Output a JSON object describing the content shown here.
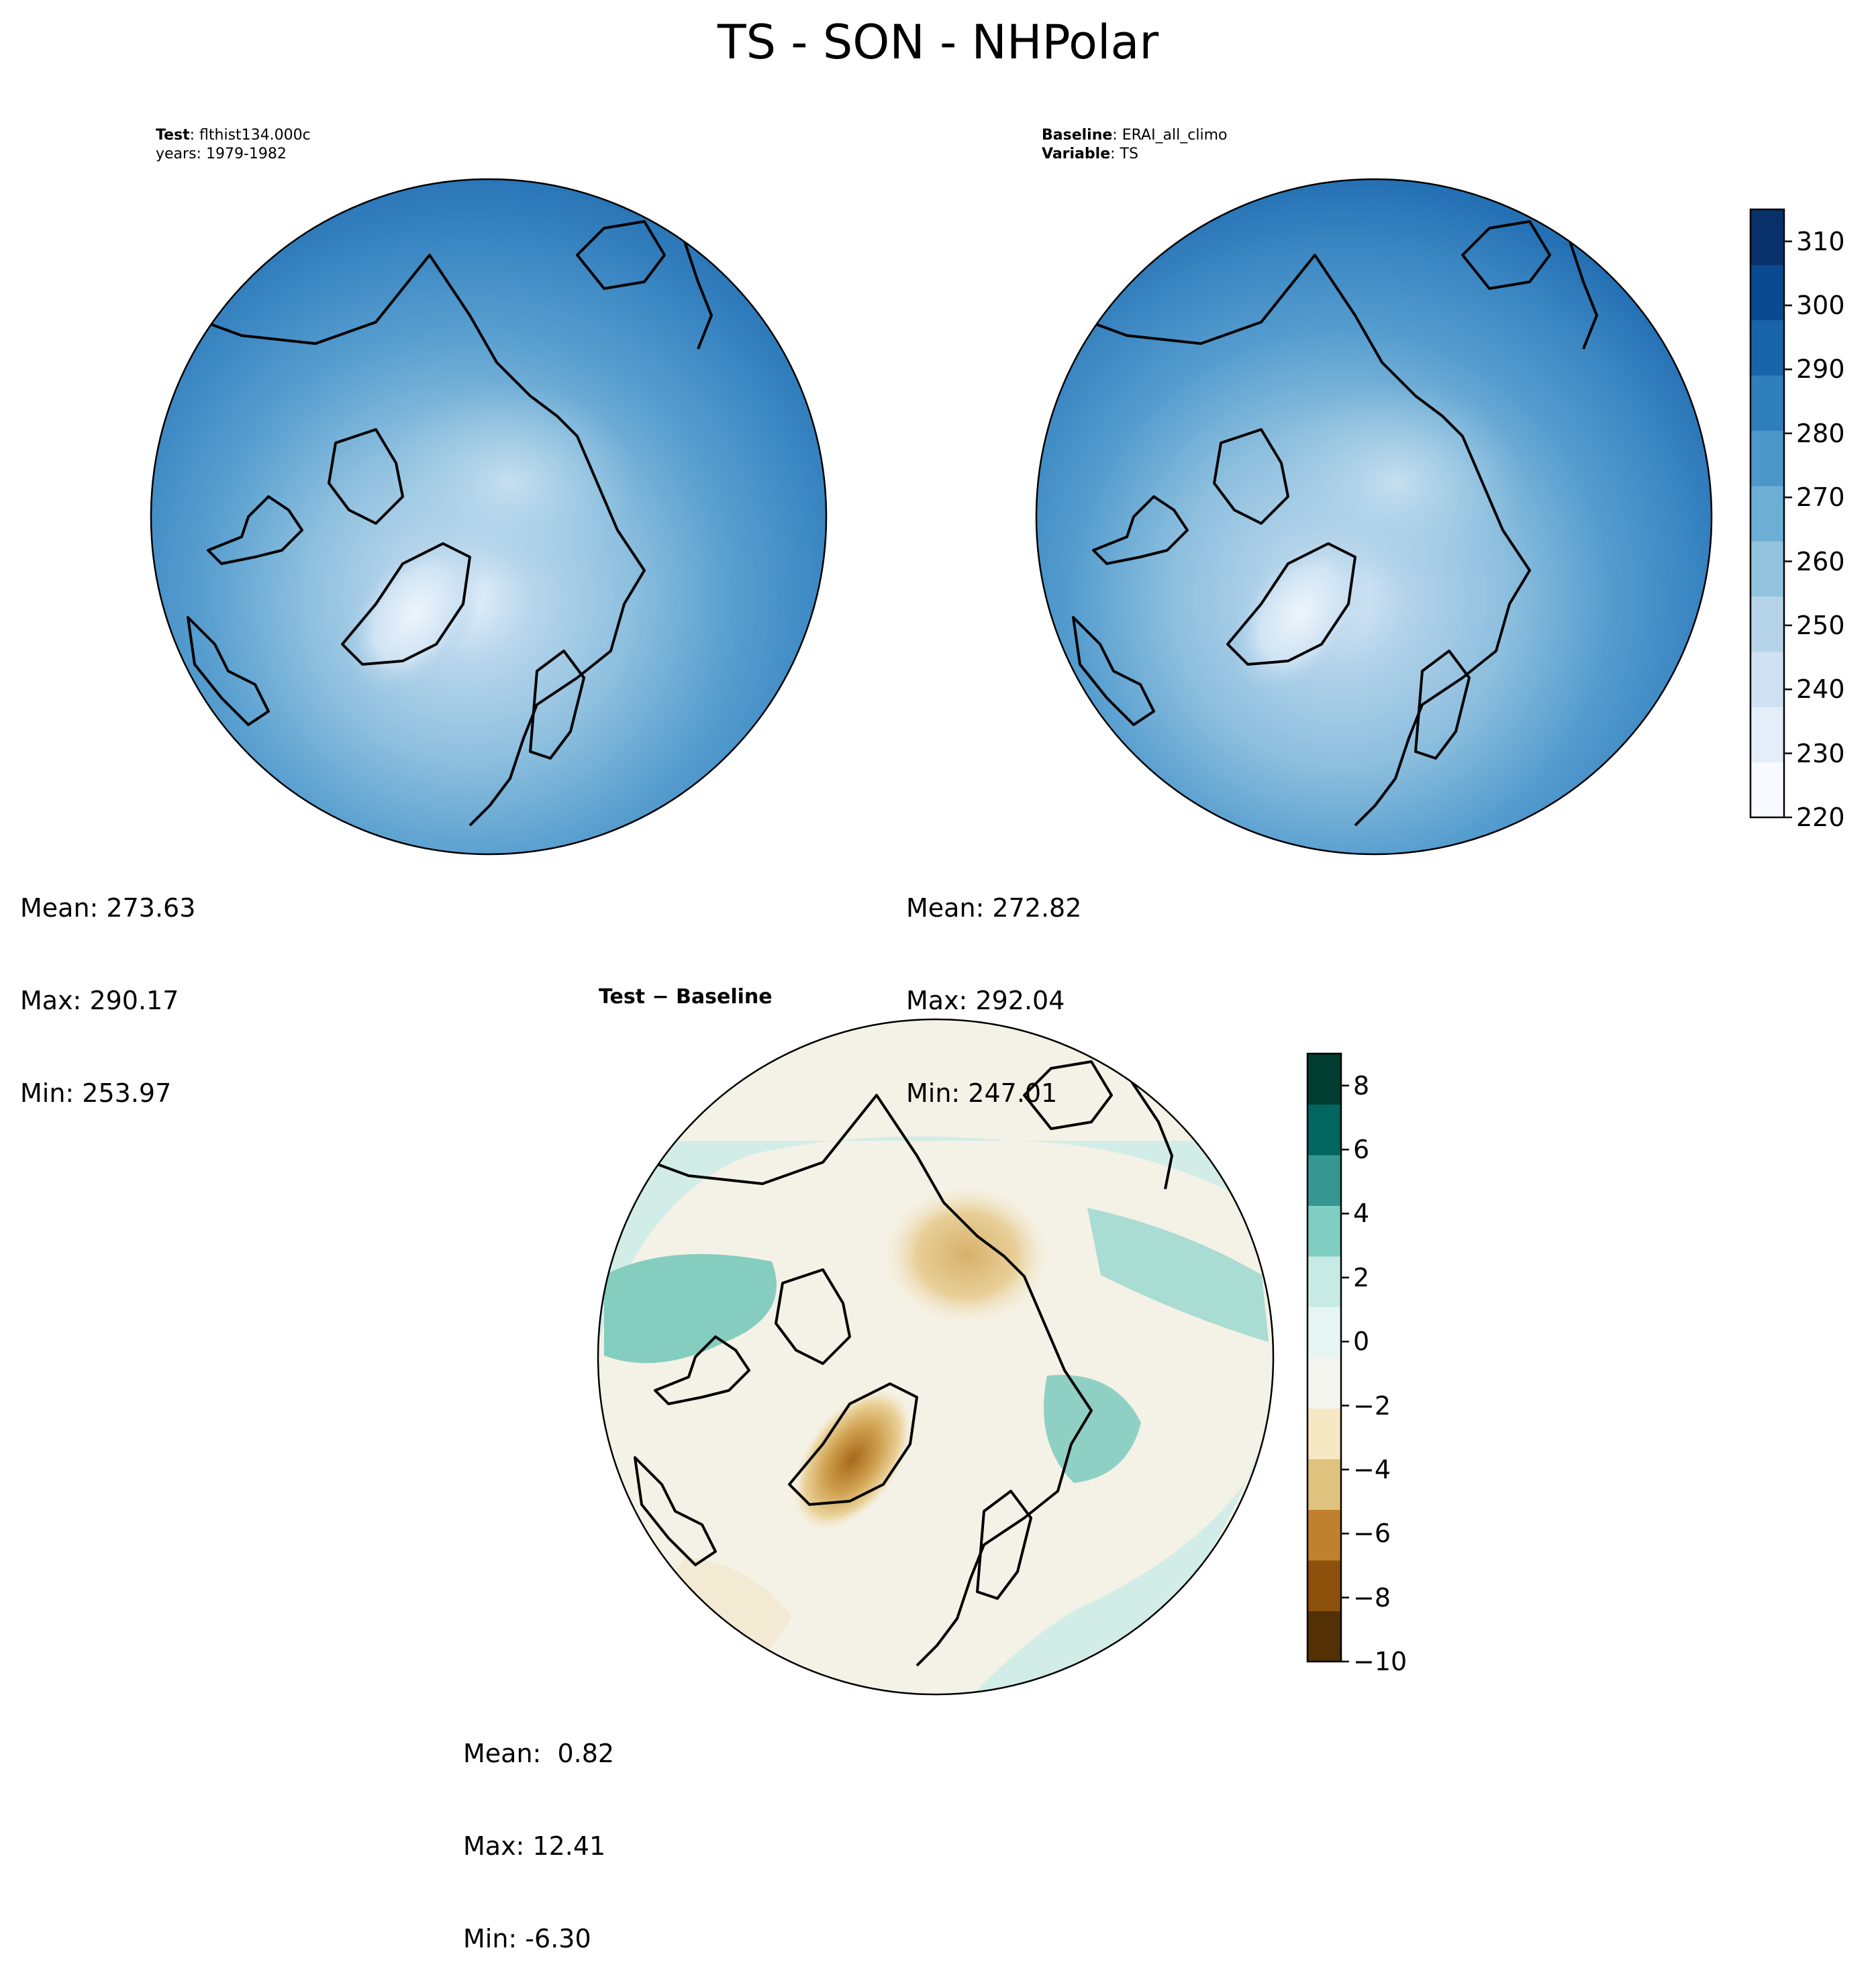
{
  "title": "TS - SON - NHPolar",
  "test_panel": {
    "case_label": "Test",
    "case_sep": ":",
    "case_name": "flthist134.000c",
    "years": "years: 1979-1982",
    "mean": "Mean: 273.63",
    "max": "Max: 290.17",
    "min": "Min: 253.97"
  },
  "baseline_panel": {
    "case_label": "Baseline",
    "case_sep": ":",
    "case_name": "ERAI_all_climo",
    "var_label": "Variable",
    "var_sep": ":",
    "var_name": "TS",
    "mean": "Mean: 272.82",
    "max": "Max: 292.04",
    "min": "Min: 247.01"
  },
  "diff_panel": {
    "title": "Test − Baseline",
    "mean": "Mean:  0.82",
    "max": "Max: 12.41",
    "min": "Min: -6.30"
  },
  "colorbar_main": {
    "ticks": [
      "220",
      "230",
      "240",
      "250",
      "260",
      "270",
      "280",
      "290",
      "300",
      "310"
    ],
    "range": [
      220,
      315
    ],
    "colors": [
      "#f7fbff",
      "#e3eef9",
      "#cfe1f2",
      "#b5d4e9",
      "#93c3df",
      "#6daed5",
      "#4b97c9",
      "#2f7fbc",
      "#1864aa",
      "#0a4a90",
      "#08306b"
    ]
  },
  "colorbar_diff": {
    "ticks": [
      "8",
      "6",
      "4",
      "2",
      "0",
      "−2",
      "−4",
      "−6",
      "−8",
      "−10"
    ],
    "range": [
      -10,
      9
    ],
    "colors": [
      "#543005",
      "#8c510a",
      "#bf812d",
      "#dfc27d",
      "#f6e8c3",
      "#f5f5f0",
      "#e6f5f2",
      "#c7eae5",
      "#80cdc1",
      "#35978f",
      "#01665e",
      "#003c30"
    ]
  }
}
